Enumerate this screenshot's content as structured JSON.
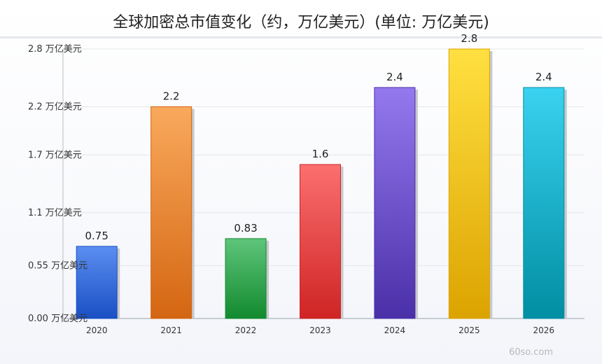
{
  "chart_data": {
    "type": "bar",
    "title": "全球加密总市值变化（约，万亿美元）(单位: 万亿美元)",
    "categories": [
      "2020",
      "2021",
      "2022",
      "2023",
      "2024",
      "2025",
      "2026"
    ],
    "values": [
      0.75,
      2.2,
      0.83,
      1.6,
      2.4,
      2.8,
      2.4
    ],
    "data_labels": [
      "0.75",
      "2.2",
      "0.83",
      "1.6",
      "2.4",
      "2.8",
      "2.4"
    ],
    "yticks": [
      0,
      0.55,
      1.1,
      1.7,
      2.2,
      2.8
    ],
    "ytick_labels": [
      "0.00 万亿美元",
      "0.55 万亿美元",
      "1.1 万亿美元",
      "1.7 万亿美元",
      "2.2 万亿美元",
      "2.8 万亿美元"
    ],
    "ylim": [
      0,
      2.8
    ],
    "grid": true,
    "legend": "none",
    "colors": [
      [
        "#5b8ef0",
        "#1a4fc4"
      ],
      [
        "#f9a95c",
        "#d46612"
      ],
      [
        "#5ec57a",
        "#128a2e"
      ],
      [
        "#fb6f6f",
        "#cf2424"
      ],
      [
        "#9478ee",
        "#4a30a8"
      ],
      [
        "#ffe040",
        "#dca300"
      ],
      [
        "#3ad2f0",
        "#008ea2"
      ]
    ]
  },
  "watermark": "60so.com"
}
